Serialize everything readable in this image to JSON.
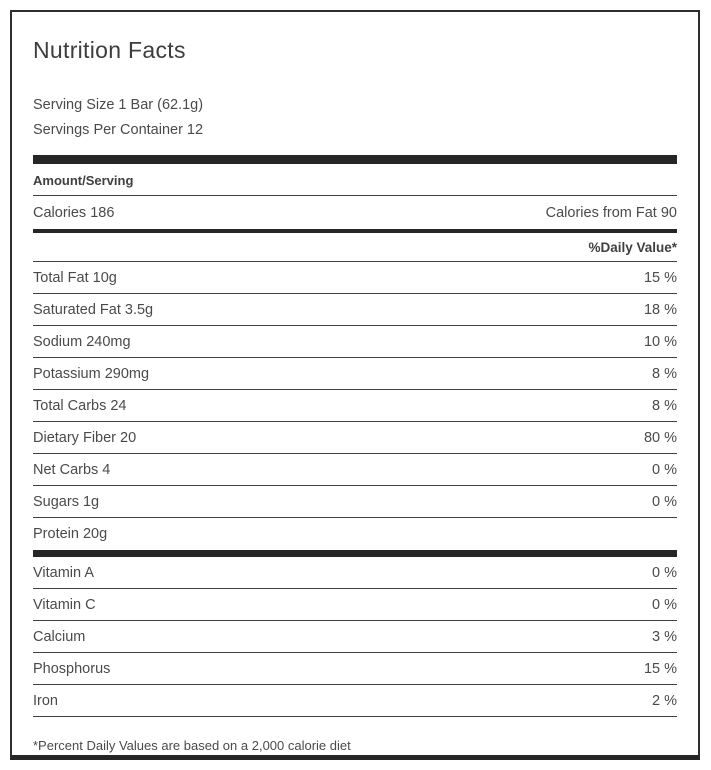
{
  "label": {
    "title": "Nutrition Facts",
    "serving_size": "Serving Size 1 Bar (62.1g)",
    "servings_per_container": "Servings Per Container 12",
    "amount_serving_header": "Amount/Serving",
    "calories": "Calories 186",
    "calories_from_fat": "Calories from Fat 90",
    "daily_value_header": "%Daily Value*",
    "nutrients": [
      {
        "name": "Total Fat 10g",
        "dv": "15 %"
      },
      {
        "name": "Saturated Fat 3.5g",
        "dv": "18 %"
      },
      {
        "name": "Sodium 240mg",
        "dv": "10 %"
      },
      {
        "name": "Potassium 290mg",
        "dv": "8 %"
      },
      {
        "name": "Total Carbs 24",
        "dv": "8 %"
      },
      {
        "name": "Dietary Fiber 20",
        "dv": "80 %"
      },
      {
        "name": "Net Carbs 4",
        "dv": "0 %"
      },
      {
        "name": "Sugars 1g",
        "dv": "0 %"
      },
      {
        "name": "Protein 20g",
        "dv": ""
      }
    ],
    "vitamins": [
      {
        "name": "Vitamin A",
        "dv": "0 %"
      },
      {
        "name": "Vitamin C",
        "dv": "0 %"
      },
      {
        "name": "Calcium",
        "dv": "3 %"
      },
      {
        "name": "Phosphorus",
        "dv": "15 %"
      },
      {
        "name": "Iron",
        "dv": "2 %"
      }
    ],
    "footnote": "*Percent Daily Values are based on a 2,000 calorie diet",
    "colors": {
      "text": "#4a4a4a",
      "bar": "#262626",
      "border": "#2e2e2e"
    }
  }
}
